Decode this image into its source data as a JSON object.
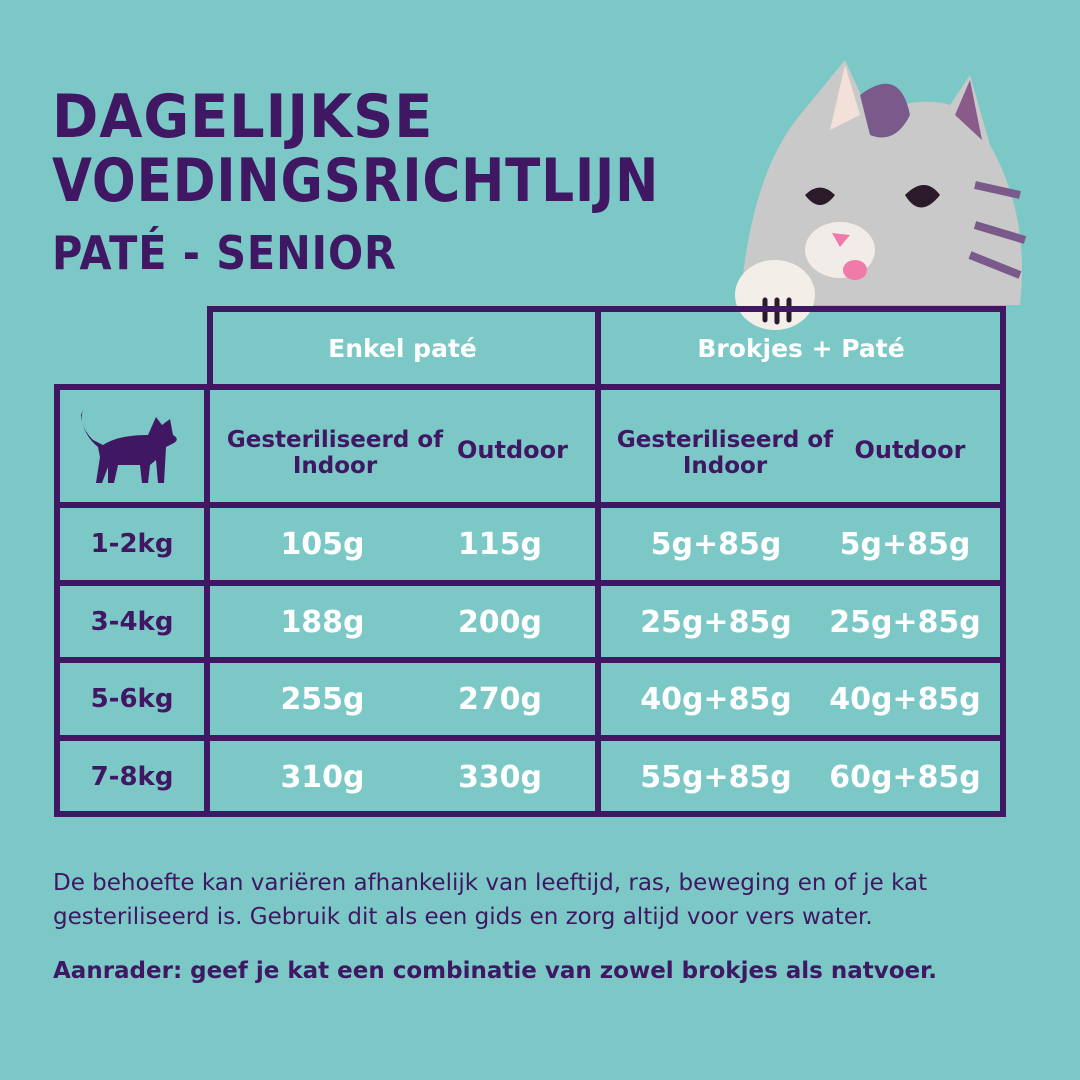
{
  "title": {
    "line1": "DAGELIJKSE",
    "line2": "VOEDINGSRICHTLIJN",
    "subtitle": "PATÉ - SENIOR"
  },
  "table": {
    "groups": [
      "Enkel paté",
      "Brokjes + Paté"
    ],
    "columns": [
      "Gesteriliseerd of Indoor",
      "Outdoor",
      "Gesteriliseerd of Indoor",
      "Outdoor"
    ],
    "rows": [
      {
        "weight": "1-2kg",
        "values": [
          "105g",
          "115g",
          "5g+85g",
          "5g+85g"
        ]
      },
      {
        "weight": "3-4kg",
        "values": [
          "188g",
          "200g",
          "25g+85g",
          "25g+85g"
        ]
      },
      {
        "weight": "5-6kg",
        "values": [
          "255g",
          "270g",
          "40g+85g",
          "40g+85g"
        ]
      },
      {
        "weight": "7-8kg",
        "values": [
          "310g",
          "330g",
          "55g+85g",
          "60g+85g"
        ]
      }
    ]
  },
  "notes": {
    "text": "De behoefte kan variëren afhankelijk van leeftijd, ras, beweging en of je kat gesteriliseerd is. Gebruik dit als een gids en zorg altijd voor vers water.",
    "tip": "Aanrader: geef je kat een combinatie van zowel brokjes als natvoer."
  },
  "colors": {
    "background": "#7bc8c7",
    "purple": "#3f1763",
    "white": "#ffffff"
  },
  "icons": [
    "cat-silhouette-icon",
    "cat-mascot-illustration"
  ]
}
